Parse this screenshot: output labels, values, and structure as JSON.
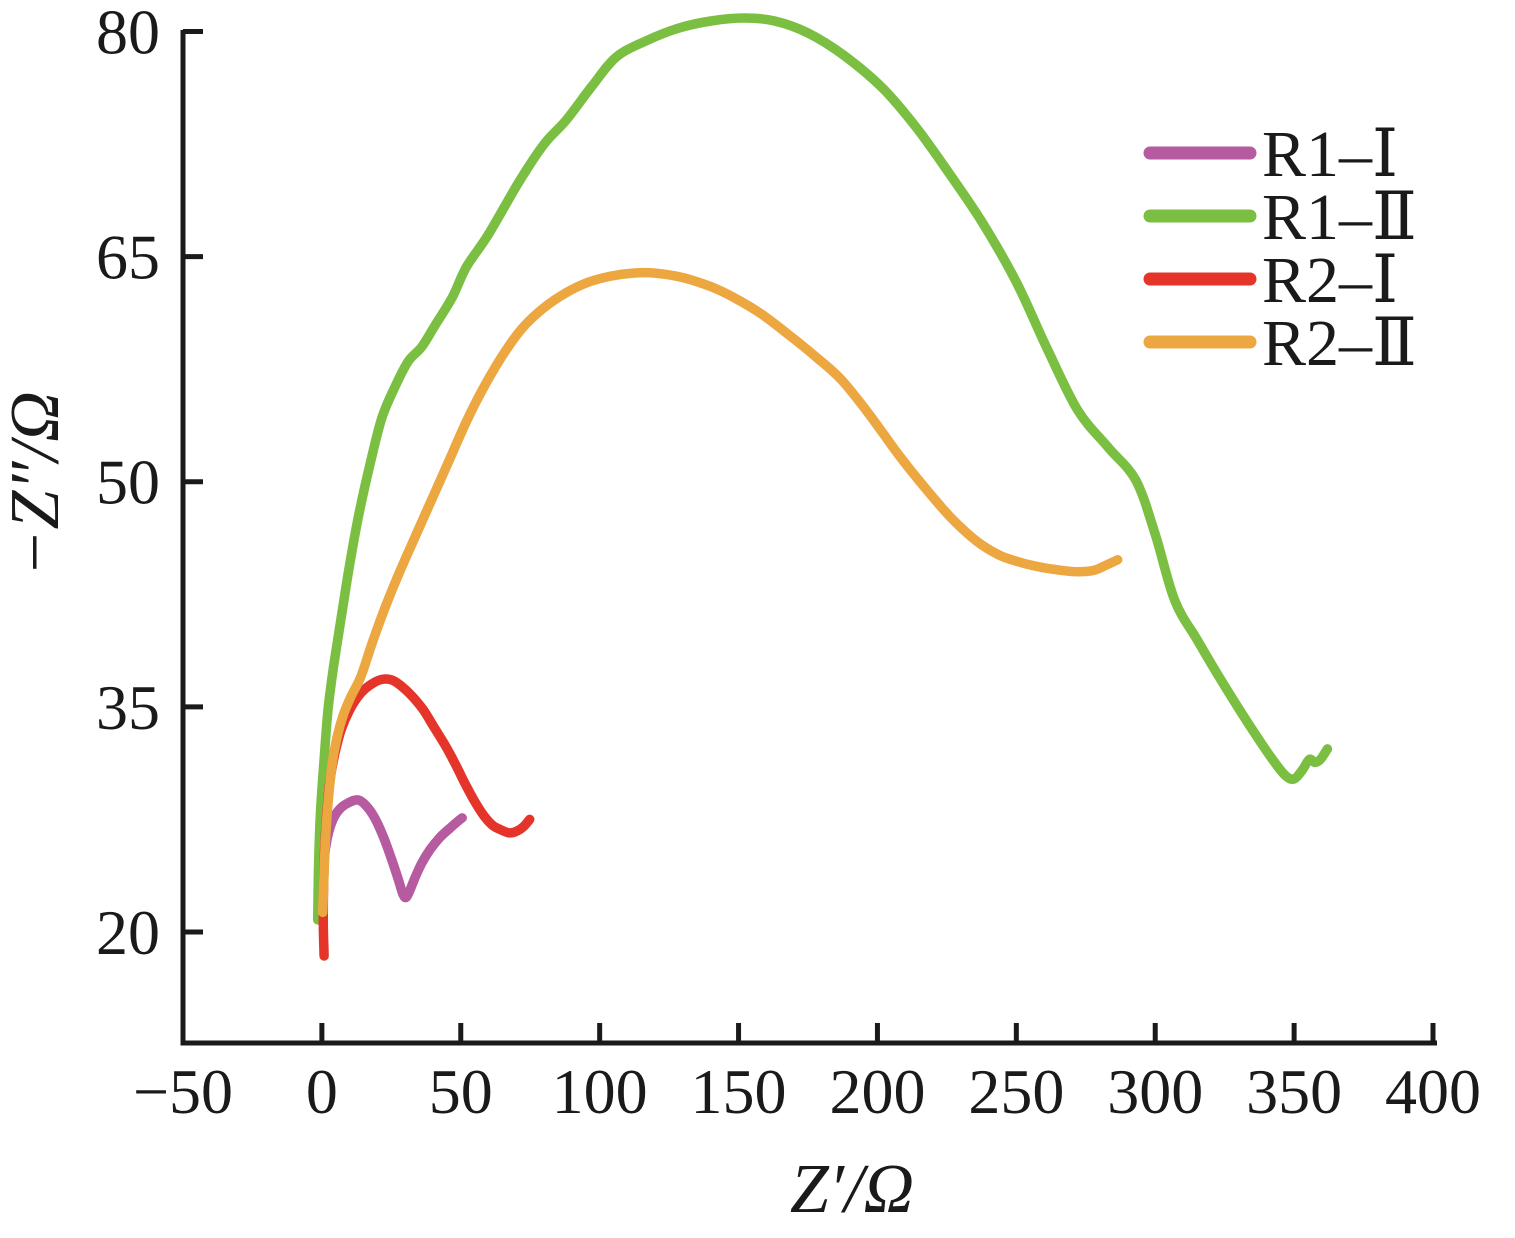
{
  "chart_data": {
    "type": "line",
    "title": "",
    "xlabel": "Z′/Ω",
    "ylabel": "−Z″/Ω",
    "xlim": [
      -50,
      400
    ],
    "ylim": [
      12.6,
      80.1
    ],
    "x_ticks": [
      -50,
      0,
      50,
      100,
      150,
      200,
      250,
      300,
      350,
      400
    ],
    "x_tick_labels": [
      "−50",
      "0",
      "50",
      "100",
      "150",
      "200",
      "250",
      "300",
      "350",
      "400"
    ],
    "y_ticks": [
      20,
      35,
      50,
      65,
      80
    ],
    "y_tick_labels": [
      "20",
      "35",
      "50",
      "65",
      "80"
    ],
    "grid": false,
    "legend_position": "upper-right",
    "axis_color": "#1a1a1a",
    "line_width": 9.5,
    "series": [
      {
        "name": "R1–Ⅰ",
        "color": "#b65ba0",
        "points": [
          [
            0.3,
            20.6
          ],
          [
            0.2,
            22.5
          ],
          [
            0.8,
            24.8
          ],
          [
            2,
            26.3
          ],
          [
            4,
            27.5
          ],
          [
            6.5,
            28.2
          ],
          [
            9.5,
            28.6
          ],
          [
            13,
            28.8
          ],
          [
            16,
            28.4
          ],
          [
            19,
            27.6
          ],
          [
            22,
            26.4
          ],
          [
            25,
            24.9
          ],
          [
            27.5,
            23.5
          ],
          [
            29.2,
            22.5
          ],
          [
            30.3,
            22.3
          ],
          [
            31.5,
            22.7
          ],
          [
            33.5,
            23.6
          ],
          [
            36,
            24.6
          ],
          [
            39,
            25.5
          ],
          [
            42.5,
            26.3
          ],
          [
            46,
            26.9
          ],
          [
            48.5,
            27.3
          ],
          [
            50.5,
            27.6
          ]
        ]
      },
      {
        "name": "R1–Ⅱ",
        "color": "#7abf42",
        "points": [
          [
            -1.5,
            20.8
          ],
          [
            -1.2,
            24.5
          ],
          [
            -0.5,
            28
          ],
          [
            0.8,
            31.5
          ],
          [
            2.2,
            34.8
          ],
          [
            4.3,
            37.8
          ],
          [
            7,
            41
          ],
          [
            10,
            44.5
          ],
          [
            13.5,
            48
          ],
          [
            17.5,
            51.3
          ],
          [
            21.5,
            54.2
          ],
          [
            26,
            56.2
          ],
          [
            31,
            58
          ],
          [
            36,
            59
          ],
          [
            41,
            60.5
          ],
          [
            47,
            62.3
          ],
          [
            52,
            64.3
          ],
          [
            60,
            66.5
          ],
          [
            71,
            70
          ],
          [
            80,
            72.5
          ],
          [
            88,
            74.1
          ],
          [
            97,
            76.3
          ],
          [
            106,
            78.3
          ],
          [
            117,
            79.4
          ],
          [
            128,
            80.2
          ],
          [
            140,
            80.7
          ],
          [
            152,
            80.9
          ],
          [
            163,
            80.7
          ],
          [
            175,
            79.9
          ],
          [
            188,
            78.4
          ],
          [
            202,
            76.2
          ],
          [
            214,
            73.6
          ],
          [
            226,
            70.5
          ],
          [
            238,
            67.2
          ],
          [
            250,
            63.3
          ],
          [
            261,
            58.9
          ],
          [
            272,
            54.8
          ],
          [
            283,
            52.3
          ],
          [
            293,
            50.1
          ],
          [
            300,
            46.5
          ],
          [
            307,
            42.1
          ],
          [
            315,
            39.5
          ],
          [
            322,
            37.3
          ],
          [
            330,
            34.9
          ],
          [
            337,
            32.9
          ],
          [
            343,
            31.3
          ],
          [
            347,
            30.4
          ],
          [
            350,
            30.2
          ],
          [
            353,
            30.8
          ],
          [
            355.5,
            31.5
          ],
          [
            357.5,
            31.3
          ],
          [
            359.5,
            31.5
          ],
          [
            362,
            32.2
          ]
        ]
      },
      {
        "name": "R2–Ⅰ",
        "color": "#e5352b",
        "points": [
          [
            0.8,
            18.4
          ],
          [
            0.5,
            20.5
          ],
          [
            0.6,
            23
          ],
          [
            1,
            25.5
          ],
          [
            1.8,
            28
          ],
          [
            3,
            30.2
          ],
          [
            4.8,
            32
          ],
          [
            7,
            33.5
          ],
          [
            10,
            34.8
          ],
          [
            13.5,
            35.8
          ],
          [
            17,
            36.4
          ],
          [
            21,
            36.8
          ],
          [
            25,
            36.8
          ],
          [
            28.5,
            36.4
          ],
          [
            32.5,
            35.7
          ],
          [
            36.5,
            34.8
          ],
          [
            40.5,
            33.6
          ],
          [
            44.5,
            32.4
          ],
          [
            48,
            31.2
          ],
          [
            51.5,
            29.9
          ],
          [
            55,
            28.7
          ],
          [
            58.5,
            27.7
          ],
          [
            61.5,
            27.1
          ],
          [
            64.5,
            26.8
          ],
          [
            67.5,
            26.6
          ],
          [
            70,
            26.7
          ],
          [
            72.5,
            27
          ],
          [
            74.8,
            27.5
          ]
        ]
      },
      {
        "name": "R2–Ⅱ",
        "color": "#eca740",
        "points": [
          [
            0.3,
            21.3
          ],
          [
            0.8,
            24
          ],
          [
            1.4,
            26.5
          ],
          [
            2.4,
            29
          ],
          [
            3.8,
            31.3
          ],
          [
            5.5,
            33
          ],
          [
            7.6,
            34.4
          ],
          [
            10.5,
            35.7
          ],
          [
            14,
            37
          ],
          [
            18,
            39.2
          ],
          [
            22.5,
            41.5
          ],
          [
            28,
            44
          ],
          [
            34,
            46.5
          ],
          [
            40,
            49
          ],
          [
            46,
            51.5
          ],
          [
            52,
            54
          ],
          [
            58,
            56.2
          ],
          [
            65,
            58.4
          ],
          [
            72,
            60.2
          ],
          [
            80,
            61.6
          ],
          [
            88,
            62.6
          ],
          [
            96,
            63.3
          ],
          [
            104,
            63.7
          ],
          [
            112,
            63.9
          ],
          [
            120,
            63.9
          ],
          [
            130,
            63.6
          ],
          [
            140,
            63
          ],
          [
            148,
            62.3
          ],
          [
            158,
            61.2
          ],
          [
            168,
            59.8
          ],
          [
            178,
            58.3
          ],
          [
            187,
            56.8
          ],
          [
            197,
            54.5
          ],
          [
            208,
            51.7
          ],
          [
            218,
            49.4
          ],
          [
            227,
            47.5
          ],
          [
            236,
            46
          ],
          [
            244,
            45.1
          ],
          [
            252,
            44.6
          ],
          [
            259,
            44.3
          ],
          [
            266,
            44.1
          ],
          [
            272,
            44
          ],
          [
            278,
            44.1
          ],
          [
            283,
            44.5
          ],
          [
            286.5,
            44.8
          ]
        ]
      }
    ]
  }
}
